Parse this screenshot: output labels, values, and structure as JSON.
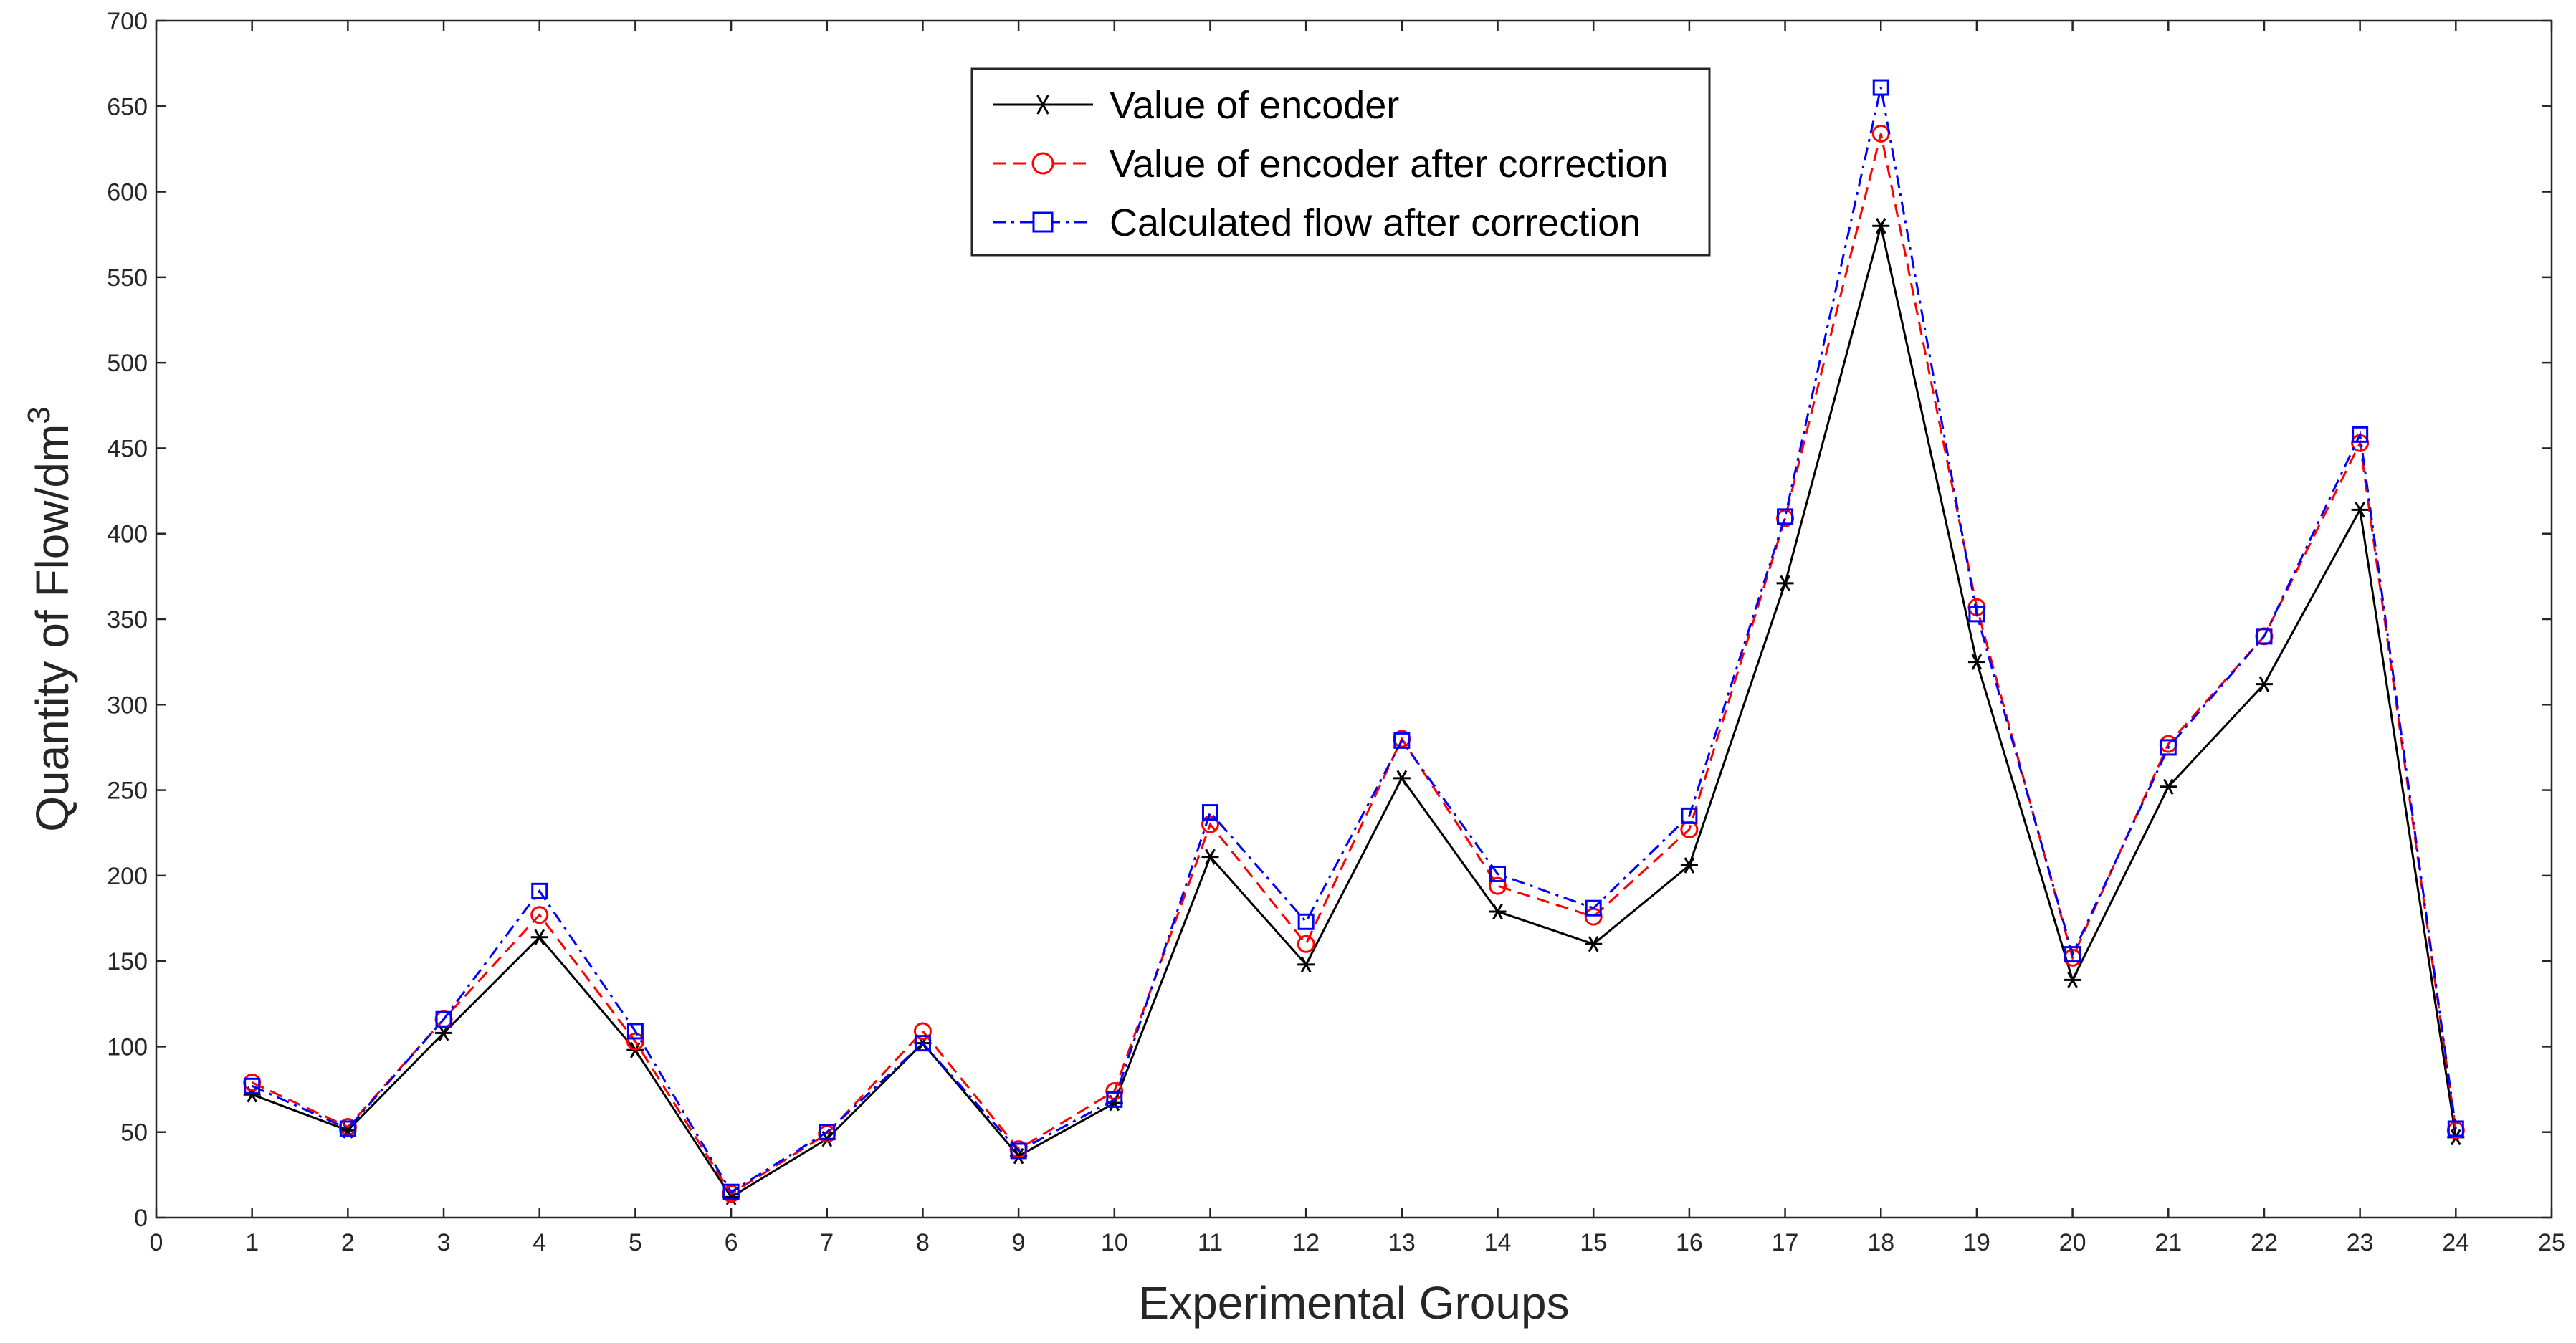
{
  "chart_data": {
    "type": "line",
    "title": "",
    "xlabel": "Experimental Groups",
    "ylabel_main": "Quantity of Flow/dm",
    "ylabel_sup": "3",
    "xlim": [
      0,
      25
    ],
    "ylim": [
      0,
      700
    ],
    "xticks": [
      0,
      1,
      2,
      3,
      4,
      5,
      6,
      7,
      8,
      9,
      10,
      11,
      12,
      13,
      14,
      15,
      16,
      17,
      18,
      19,
      20,
      21,
      22,
      23,
      24,
      25
    ],
    "yticks": [
      0,
      50,
      100,
      150,
      200,
      250,
      300,
      350,
      400,
      450,
      500,
      550,
      600,
      650,
      700
    ],
    "grid": false,
    "legend_position": "top-center",
    "x": [
      1,
      2,
      3,
      4,
      5,
      6,
      7,
      8,
      9,
      10,
      11,
      12,
      13,
      14,
      15,
      16,
      17,
      18,
      19,
      20,
      21,
      22,
      23,
      24
    ],
    "series": [
      {
        "name": "Value of encoder",
        "color": "#000000",
        "line_style": "solid",
        "marker": "asterisk",
        "values": [
          72,
          51,
          108,
          164,
          98,
          12,
          46,
          102,
          36,
          67,
          211,
          148,
          257,
          179,
          160,
          206,
          371,
          580,
          325,
          139,
          252,
          312,
          414,
          47
        ]
      },
      {
        "name": "Value of encoder after correction",
        "color": "#ff0000",
        "line_style": "dashed",
        "marker": "circle",
        "values": [
          79,
          53,
          116,
          177,
          103,
          14,
          49,
          109,
          40,
          74,
          230,
          160,
          280,
          194,
          176,
          227,
          409,
          634,
          357,
          152,
          277,
          340,
          453,
          51
        ]
      },
      {
        "name": "Calculated flow after correction",
        "color": "#0000ff",
        "line_style": "dashdot",
        "marker": "square",
        "values": [
          77,
          52,
          116,
          191,
          109,
          15,
          50,
          102,
          39,
          69,
          237,
          173,
          279,
          201,
          181,
          235,
          410,
          661,
          353,
          154,
          275,
          340,
          458,
          52
        ]
      }
    ]
  }
}
